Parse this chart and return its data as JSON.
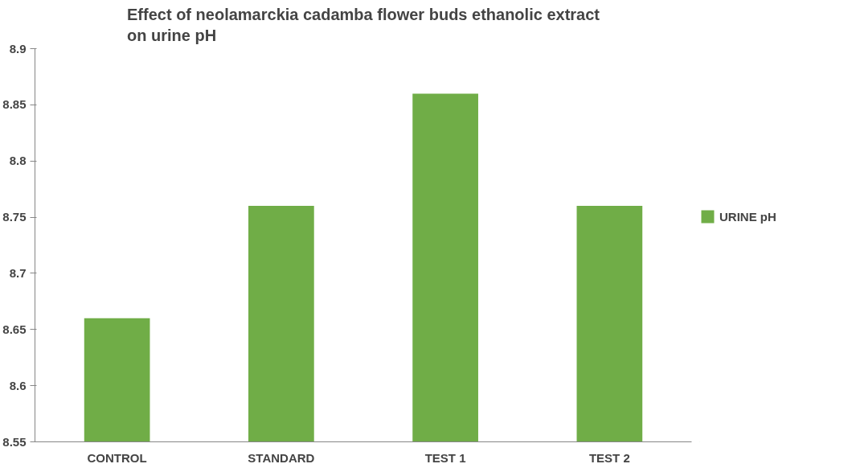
{
  "chart_data": {
    "type": "bar",
    "title": "Effect of neolamarckia cadamba flower buds ethanolic extract on urine pH",
    "categories": [
      "CONTROL",
      "STANDARD",
      "TEST 1",
      "TEST 2"
    ],
    "series": [
      {
        "name": "URINE pH",
        "color": "#70ad47",
        "values": [
          8.66,
          8.76,
          8.86,
          8.76
        ]
      }
    ],
    "ylim": [
      8.55,
      8.9
    ],
    "yticks": [
      8.55,
      8.6,
      8.65,
      8.7,
      8.75,
      8.8,
      8.85,
      8.9
    ],
    "grid": false,
    "legend": "right"
  }
}
